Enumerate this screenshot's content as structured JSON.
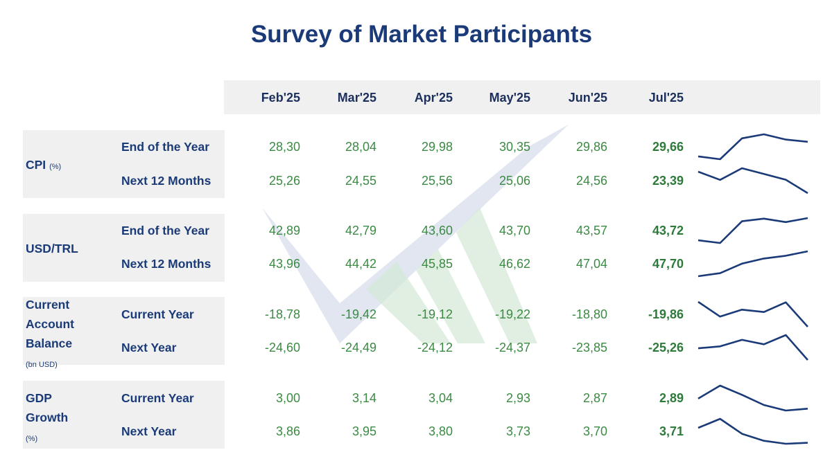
{
  "title": "Survey of Market Participants",
  "colors": {
    "title": "#1a3a78",
    "label": "#1a3a78",
    "value": "#3b8a43",
    "spark": "#1a3a78",
    "band": "#f0f0f0"
  },
  "chart_data": {
    "type": "table",
    "columns": [
      "Feb'25",
      "Mar'25",
      "Apr'25",
      "May'25",
      "Jun'25",
      "Jul'25"
    ],
    "groups": [
      {
        "name": "CPI",
        "unit": "(%)",
        "rows": [
          {
            "label": "End of the Year",
            "values": [
              "28,30",
              "28,04",
              "29,98",
              "30,35",
              "29,86",
              "29,66"
            ],
            "series": [
              28.3,
              28.04,
              29.98,
              30.35,
              29.86,
              29.66
            ]
          },
          {
            "label": "Next 12 Months",
            "values": [
              "25,26",
              "24,55",
              "25,56",
              "25,06",
              "24,56",
              "23,39"
            ],
            "series": [
              25.26,
              24.55,
              25.56,
              25.06,
              24.56,
              23.39
            ]
          }
        ]
      },
      {
        "name": "USD/TRL",
        "unit": "",
        "rows": [
          {
            "label": "End of the Year",
            "values": [
              "42,89",
              "42,79",
              "43,60",
              "43,70",
              "43,57",
              "43,72"
            ],
            "series": [
              42.89,
              42.79,
              43.6,
              43.7,
              43.57,
              43.72
            ]
          },
          {
            "label": "Next 12 Months",
            "values": [
              "43,96",
              "44,42",
              "45,85",
              "46,62",
              "47,04",
              "47,70"
            ],
            "series": [
              43.96,
              44.42,
              45.85,
              46.62,
              47.04,
              47.7
            ]
          }
        ]
      },
      {
        "name": "Current Account Balance",
        "unit": "(bn USD)",
        "rows": [
          {
            "label": "Current Year",
            "values": [
              "-18,78",
              "-19,42",
              "-19,12",
              "-19,22",
              "-18,80",
              "-19,86"
            ],
            "series": [
              -18.78,
              -19.42,
              -19.12,
              -19.22,
              -18.8,
              -19.86
            ]
          },
          {
            "label": "Next Year",
            "values": [
              "-24,60",
              "-24,49",
              "-24,12",
              "-24,37",
              "-23,85",
              "-25,26"
            ],
            "series": [
              -24.6,
              -24.49,
              -24.12,
              -24.37,
              -23.85,
              -25.26
            ]
          }
        ]
      },
      {
        "name": "GDP Growth",
        "unit": "(%)",
        "rows": [
          {
            "label": "Current Year",
            "values": [
              "3,00",
              "3,14",
              "3,04",
              "2,93",
              "2,87",
              "2,89"
            ],
            "series": [
              3.0,
              3.14,
              3.04,
              2.93,
              2.87,
              2.89
            ]
          },
          {
            "label": "Next Year",
            "values": [
              "3,86",
              "3,95",
              "3,80",
              "3,73",
              "3,70",
              "3,71"
            ],
            "series": [
              3.86,
              3.95,
              3.8,
              3.73,
              3.7,
              3.71
            ]
          }
        ]
      }
    ]
  }
}
